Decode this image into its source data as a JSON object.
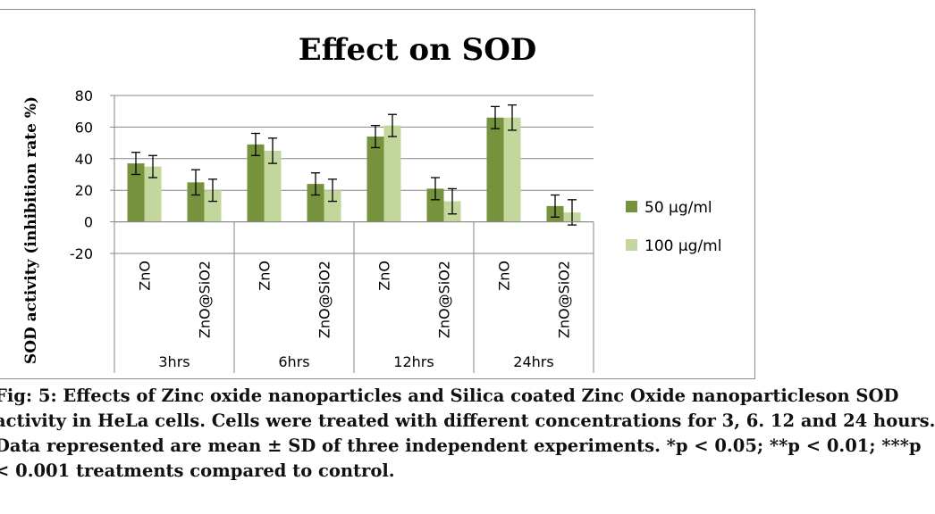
{
  "chart_data": {
    "type": "bar",
    "title": "Effect on SOD",
    "ylabel": "SOD activity (inhibition rate %)",
    "ylim": [
      -20,
      80
    ],
    "yticks": [
      80,
      60,
      40,
      20,
      0,
      -20
    ],
    "groups": [
      "3hrs",
      "6hrs",
      "12hrs",
      "24hrs"
    ],
    "categories": [
      "ZnO",
      "ZnO@SiO2",
      "ZnO",
      "ZnO@SiO2",
      "ZnO",
      "ZnO@SiO2",
      "ZnO",
      "ZnO@SiO2"
    ],
    "series": [
      {
        "name": "50 µg/ml",
        "color": "#76923c",
        "values": [
          37,
          25,
          49,
          24,
          54,
          21,
          66,
          10
        ],
        "errors": [
          7,
          8,
          7,
          7,
          7,
          7,
          7,
          7
        ]
      },
      {
        "name": "100 µg/ml",
        "color": "#c3d69b",
        "values": [
          35,
          20,
          45,
          20,
          61,
          13,
          66,
          6
        ],
        "errors": [
          7,
          7,
          8,
          7,
          7,
          8,
          8,
          8
        ]
      }
    ],
    "grid": true,
    "legend": "right"
  },
  "caption": {
    "lines": [
      "Fig: 5: Effects of Zinc oxide nanoparticles and Silica coated Zinc Oxide nanoparticleson SOD",
      "activity in HeLa cells. Cells were treated with different concentrations for 3, 6. 12 and 24 hours.",
      "Data represented are mean ± SD of three independent experiments. *p < 0.05; **p < 0.01; ***p",
      "< 0.001 treatments compared to control."
    ]
  }
}
